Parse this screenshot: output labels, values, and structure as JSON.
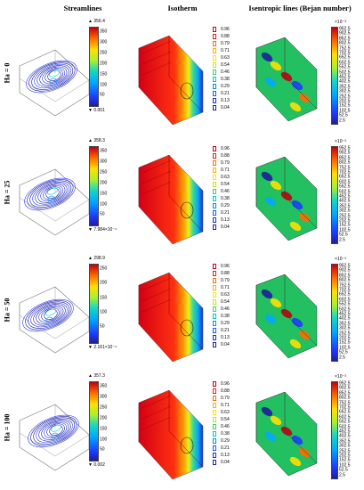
{
  "headers": {
    "streamlines": "Streamlines",
    "isotherm": "Isotherm",
    "isentropic": "Isentropic lines (Bejan number)"
  },
  "rows": [
    {
      "label": "Ha = 0",
      "max": "▲ 356.4",
      "min": "▼ 0.001",
      "exp": "×10⁻³"
    },
    {
      "label": "Ha = 25",
      "max": "▲ 358.3",
      "min": "▼ 7.984×10⁻⁴",
      "exp": "×10⁻³"
    },
    {
      "label": "Ha = 50",
      "max": "▲ 298.9",
      "min": "▼ 2.161×10⁻⁴",
      "exp": "×10⁻³"
    },
    {
      "label": "Ha = 100",
      "max": "▲ 357.3",
      "min": "▼ 0.002",
      "exp": "×10⁻³"
    }
  ],
  "streamline_ticks": [
    [
      "350",
      "300",
      "250",
      "200",
      "150",
      "100",
      "50"
    ],
    [
      "350",
      "300",
      "250",
      "200",
      "150",
      "100",
      "50"
    ],
    [
      "250",
      "200",
      "150",
      "100",
      "50"
    ],
    [
      "350",
      "300",
      "250",
      "200",
      "150",
      "100",
      "50"
    ]
  ],
  "isotherm_levels": [
    "0.96",
    "0.88",
    "0.79",
    "0.71",
    "0.63",
    "0.54",
    "0.46",
    "0.38",
    "0.29",
    "0.21",
    "0.13",
    "0.04"
  ],
  "isotherm_colors": [
    "#c8001e",
    "#e8201a",
    "#ff6a00",
    "#ffb000",
    "#ffe400",
    "#bff000",
    "#3ad26e",
    "#00c8c8",
    "#0090e8",
    "#1060ff",
    "#1830d8",
    "#1f1fa8"
  ],
  "bejan_ticks": [
    "952.5",
    "902.5",
    "852.5",
    "802.5",
    "752.5",
    "702.5",
    "652.5",
    "602.5",
    "552.5",
    "502.5",
    "452.5",
    "402.5",
    "352.5",
    "302.5",
    "252.5",
    "202.5",
    "152.5",
    "102.5",
    "52.5",
    "2.5"
  ]
}
